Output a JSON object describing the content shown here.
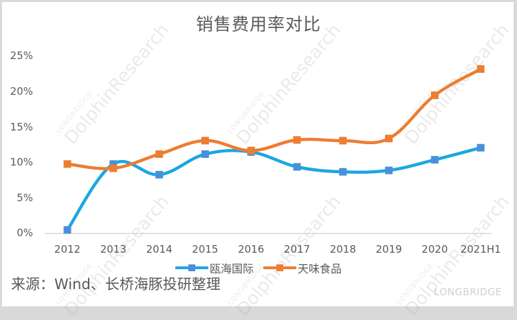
{
  "chart_data": {
    "type": "line",
    "title": "销售费用率对比",
    "xlabel": "",
    "ylabel": "",
    "categories": [
      "2012",
      "2013",
      "2014",
      "2015",
      "2016",
      "2017",
      "2018",
      "2019",
      "2020",
      "2021H1"
    ],
    "series": [
      {
        "name": "瓯海国际",
        "color": "#1aa7e0",
        "marker_color": "#4a90d9",
        "values": [
          0.5,
          9.8,
          8.3,
          11.2,
          11.5,
          9.4,
          8.7,
          8.9,
          10.4,
          12.1
        ]
      },
      {
        "name": "天味食品",
        "color": "#ed7d31",
        "marker_color": "#ed7d31",
        "values": [
          9.8,
          9.2,
          11.2,
          13.1,
          11.7,
          13.2,
          13.1,
          13.4,
          19.5,
          23.2
        ]
      }
    ],
    "ylim": [
      0,
      25
    ],
    "yticks": [
      "0%",
      "5%",
      "10%",
      "15%",
      "20%",
      "25%"
    ],
    "grid": false,
    "legend_position": "bottom",
    "smooth": true
  },
  "header": {
    "title": "销售费用率对比"
  },
  "axis": {
    "y_ticks": [
      "25%",
      "20%",
      "15%",
      "10%",
      "5%",
      "0%"
    ],
    "x_ticks": [
      "2012",
      "2013",
      "2014",
      "2015",
      "2016",
      "2017",
      "2018",
      "2019",
      "2020",
      "2021H1"
    ]
  },
  "legend": {
    "items": [
      "瓯海国际",
      "天味食品"
    ]
  },
  "source": "来源：Wind、长桥海豚投研整理",
  "watermark": {
    "brand": "LONGBRIDGE",
    "text": "DolphinResearch"
  }
}
